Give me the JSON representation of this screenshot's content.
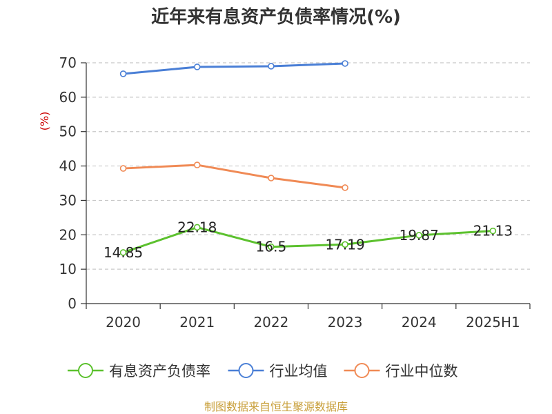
{
  "chart_data": {
    "type": "line",
    "title": "近年来有息资产负债率情况(%)",
    "ylabel": "(%)",
    "ylabel_color": "#cc0000",
    "categories": [
      "2020",
      "2021",
      "2022",
      "2023",
      "2024",
      "2025H1"
    ],
    "ylim": [
      0,
      70
    ],
    "yticks": [
      0,
      10,
      20,
      30,
      40,
      50,
      60,
      70
    ],
    "grid": true,
    "legend_position": "bottom",
    "series": [
      {
        "name": "有息资产负债率",
        "color": "#5cc12e",
        "values": [
          14.85,
          22.18,
          16.5,
          17.19,
          19.87,
          21.13
        ],
        "show_labels": true,
        "labels": [
          "14.85",
          "22.18",
          "16.5",
          "17.19",
          "19.87",
          "21.13"
        ]
      },
      {
        "name": "行业均值",
        "color": "#4a7fd6",
        "values": [
          66.8,
          68.8,
          69.0,
          69.8,
          null,
          null
        ],
        "show_labels": false
      },
      {
        "name": "行业中位数",
        "color": "#f08a55",
        "values": [
          39.3,
          40.3,
          36.5,
          33.7,
          null,
          null
        ],
        "show_labels": false
      }
    ]
  },
  "source_text": "制图数据来自恒生聚源数据库",
  "source_color": "#c9a03c"
}
